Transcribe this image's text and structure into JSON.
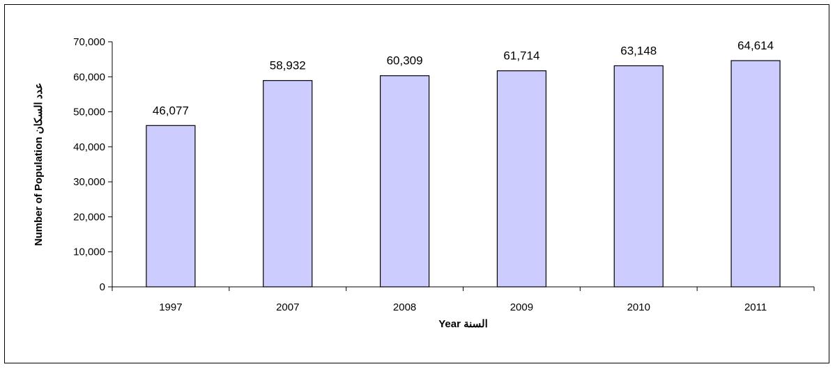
{
  "chart_data": {
    "type": "bar",
    "categories": [
      "1997",
      "2007",
      "2008",
      "2009",
      "2010",
      "2011"
    ],
    "values": [
      46077,
      58932,
      60309,
      61714,
      63148,
      64614
    ],
    "data_labels": [
      "46,077",
      "58,932",
      "60,309",
      "61,714",
      "63,148",
      "64,614"
    ],
    "title": "",
    "xlabel": "Year السنة",
    "ylabel": "Number of Population عدد السكان",
    "ylim": [
      0,
      70000
    ],
    "yticks": [
      0,
      10000,
      20000,
      30000,
      40000,
      50000,
      60000,
      70000
    ],
    "ytick_labels": [
      "0",
      "10,000",
      "20,000",
      "30,000",
      "40,000",
      "50,000",
      "60,000",
      "70,000"
    ],
    "grid": false,
    "legend": "none",
    "colors": {
      "bar_fill": "#ccccff",
      "bar_stroke": "#000000"
    }
  }
}
